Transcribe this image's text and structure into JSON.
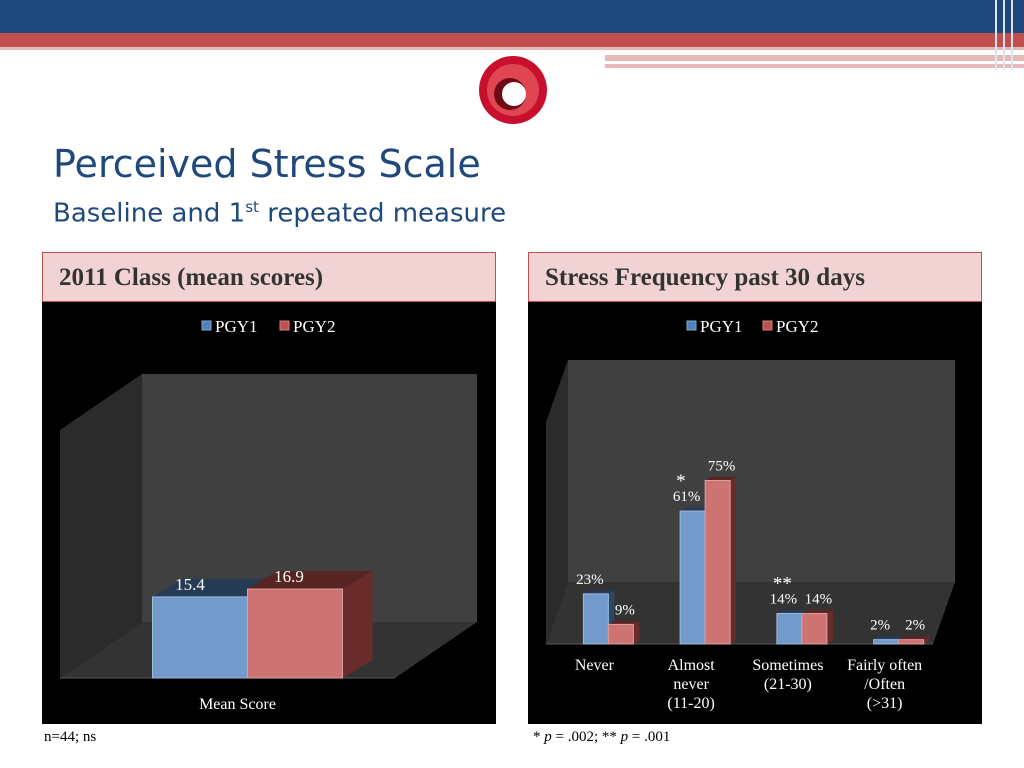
{
  "slide": {
    "title": "Perceived Stress Scale",
    "subtitle_pre": "Baseline and 1",
    "subtitle_sup": "st",
    "subtitle_post": " repeated measure"
  },
  "left_panel": {
    "header": "2011 Class (mean scores)",
    "footnote": "n=44; ns"
  },
  "right_panel": {
    "header": "Stress Frequency past 30 days",
    "footnote_parts": [
      "* ",
      "p",
      " = .002; ** ",
      "p",
      " = .001"
    ]
  },
  "colors": {
    "pgy1": "#4f81bd",
    "pgy2": "#c0504d",
    "accent": "#1f497d"
  },
  "chart_data": [
    {
      "type": "bar",
      "categories": [
        "Mean Score"
      ],
      "series": [
        {
          "name": "PGY1",
          "values": [
            15.4
          ]
        },
        {
          "name": "PGY2",
          "values": [
            16.9
          ]
        }
      ],
      "data_labels": [
        [
          "15.4"
        ],
        [
          "16.9"
        ]
      ],
      "ylim": [
        0,
        60
      ],
      "legend": "top",
      "style": "3d"
    },
    {
      "type": "bar",
      "categories": [
        [
          "Never"
        ],
        [
          "Almost",
          "never",
          "(11-20)"
        ],
        [
          "Sometimes",
          "(21-30)"
        ],
        [
          "Fairly often",
          "/Often",
          "(>31)"
        ]
      ],
      "series": [
        {
          "name": "PGY1",
          "values": [
            23,
            61,
            14,
            2
          ]
        },
        {
          "name": "PGY2",
          "values": [
            9,
            75,
            14,
            2
          ]
        }
      ],
      "data_labels": [
        [
          "23%",
          "61%",
          "14%",
          "2%"
        ],
        [
          "9%",
          "75%",
          "14%",
          "2%"
        ]
      ],
      "annotations": [
        "",
        "*",
        "**",
        ""
      ],
      "ylim": [
        0,
        100
      ],
      "legend": "top",
      "style": "3d"
    }
  ]
}
